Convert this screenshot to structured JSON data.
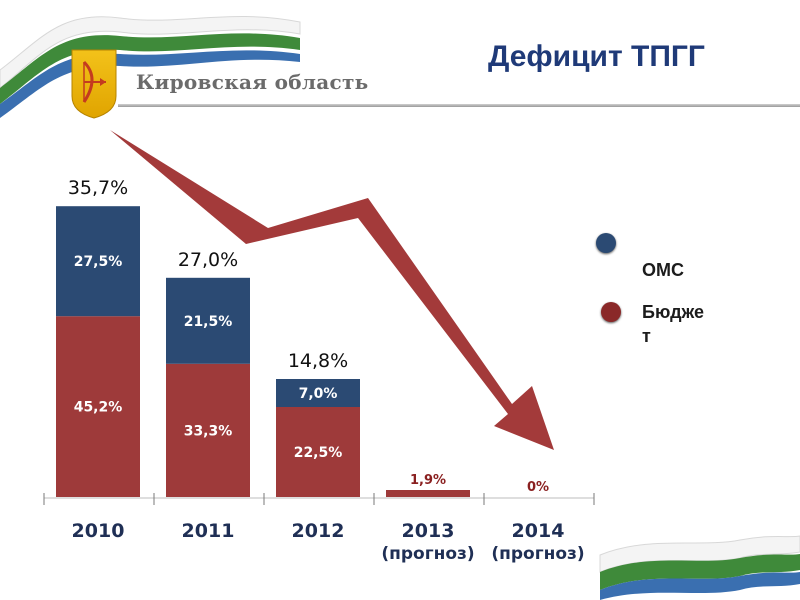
{
  "header": {
    "region_name": "Кировская область",
    "title": "Дефицит ТПГГ"
  },
  "colors": {
    "oms": "#2b4a73",
    "budget": "#9e3a3a",
    "arrow": "#9e2f2f",
    "title": "#1f3a78"
  },
  "legend": {
    "items": [
      {
        "label": "ОМС",
        "color": "#2b4a73"
      },
      {
        "label": "Бюдже\nт",
        "color": "#8a2828"
      }
    ]
  },
  "chart_data": {
    "type": "bar",
    "stacked": true,
    "title": "Дефицит ТПГГ",
    "categories": [
      {
        "year": "2010",
        "note": ""
      },
      {
        "year": "2011",
        "note": ""
      },
      {
        "year": "2012",
        "note": ""
      },
      {
        "year": "2013",
        "note": "(прогноз)"
      },
      {
        "year": "2014",
        "note": "(прогноз)"
      }
    ],
    "series": [
      {
        "name": "Бюджет",
        "values": [
          45.2,
          33.3,
          22.5,
          1.9,
          0
        ],
        "labels": [
          "45,2%",
          "33,3%",
          "22,5%",
          "1,9%",
          "0%"
        ]
      },
      {
        "name": "ОМС",
        "values": [
          27.5,
          21.5,
          7.0,
          0,
          0
        ],
        "labels": [
          "27,5%",
          "21,5%",
          "7,0%",
          "",
          ""
        ]
      }
    ],
    "totals": {
      "values": [
        35.7,
        27.0,
        14.8,
        1.9,
        0
      ],
      "labels": [
        "35,7%",
        "27,0%",
        "14,8%",
        "",
        ""
      ]
    },
    "xlabel": "",
    "ylabel": "",
    "grid": false,
    "legend_position": "right"
  }
}
